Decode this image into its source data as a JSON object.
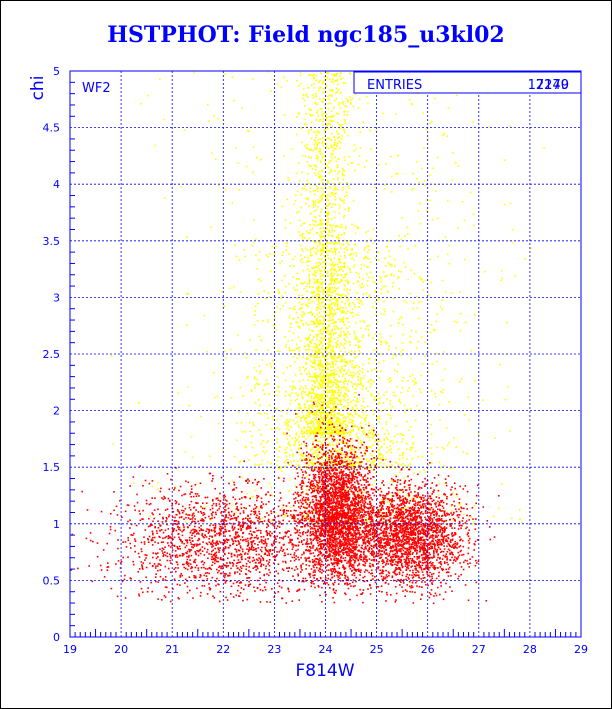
{
  "chart_data": {
    "type": "scatter",
    "title": "HSTPHOT: Field ngc185_u3kl02",
    "xlabel": "F814W",
    "ylabel": "chi",
    "xlim": [
      19,
      29
    ],
    "ylim": [
      0,
      5
    ],
    "x_ticks": [
      "19",
      "20",
      "21",
      "22",
      "23",
      "24",
      "25",
      "26",
      "27",
      "28",
      "29"
    ],
    "y_ticks": [
      "0",
      "0.5",
      "1",
      "1.5",
      "2",
      "2.5",
      "3",
      "3.5",
      "4",
      "4.5",
      "5"
    ],
    "grid": true,
    "panel_label": "WF2",
    "stats_box": {
      "label": "ENTRIES",
      "values": [
        "12149",
        "7270"
      ]
    },
    "series": [
      {
        "color": "#ffff00",
        "total_entries": 7270,
        "clusters": [
          {
            "x_center": 24.0,
            "x_sd": 0.25,
            "y_min": 1.8,
            "y_max": 5.0,
            "share": 0.45
          },
          {
            "x_center": 24.2,
            "x_sd": 0.85,
            "y_min": 1.5,
            "y_max": 3.5,
            "share": 0.35
          },
          {
            "x_center": 24.5,
            "x_sd": 1.6,
            "y_min": 1.0,
            "y_max": 5.0,
            "share": 0.2
          }
        ]
      },
      {
        "color": "#ff0000",
        "total_entries": 12149,
        "clusters": [
          {
            "x_center": 24.2,
            "x_sd": 0.35,
            "y_center": 1.1,
            "y_sd": 0.3,
            "share": 0.4
          },
          {
            "x_center": 25.6,
            "x_sd": 0.55,
            "y_center": 0.9,
            "y_sd": 0.22,
            "share": 0.35
          },
          {
            "x_center": 22.0,
            "x_sd": 1.1,
            "y_center": 0.85,
            "y_sd": 0.25,
            "share": 0.25
          }
        ]
      }
    ],
    "colors": {
      "grid": "#0000ff",
      "axis_text": "#0000ff",
      "title": "#0000ff",
      "points_yellow": "#ffff00",
      "points_red": "#ff0000"
    }
  }
}
